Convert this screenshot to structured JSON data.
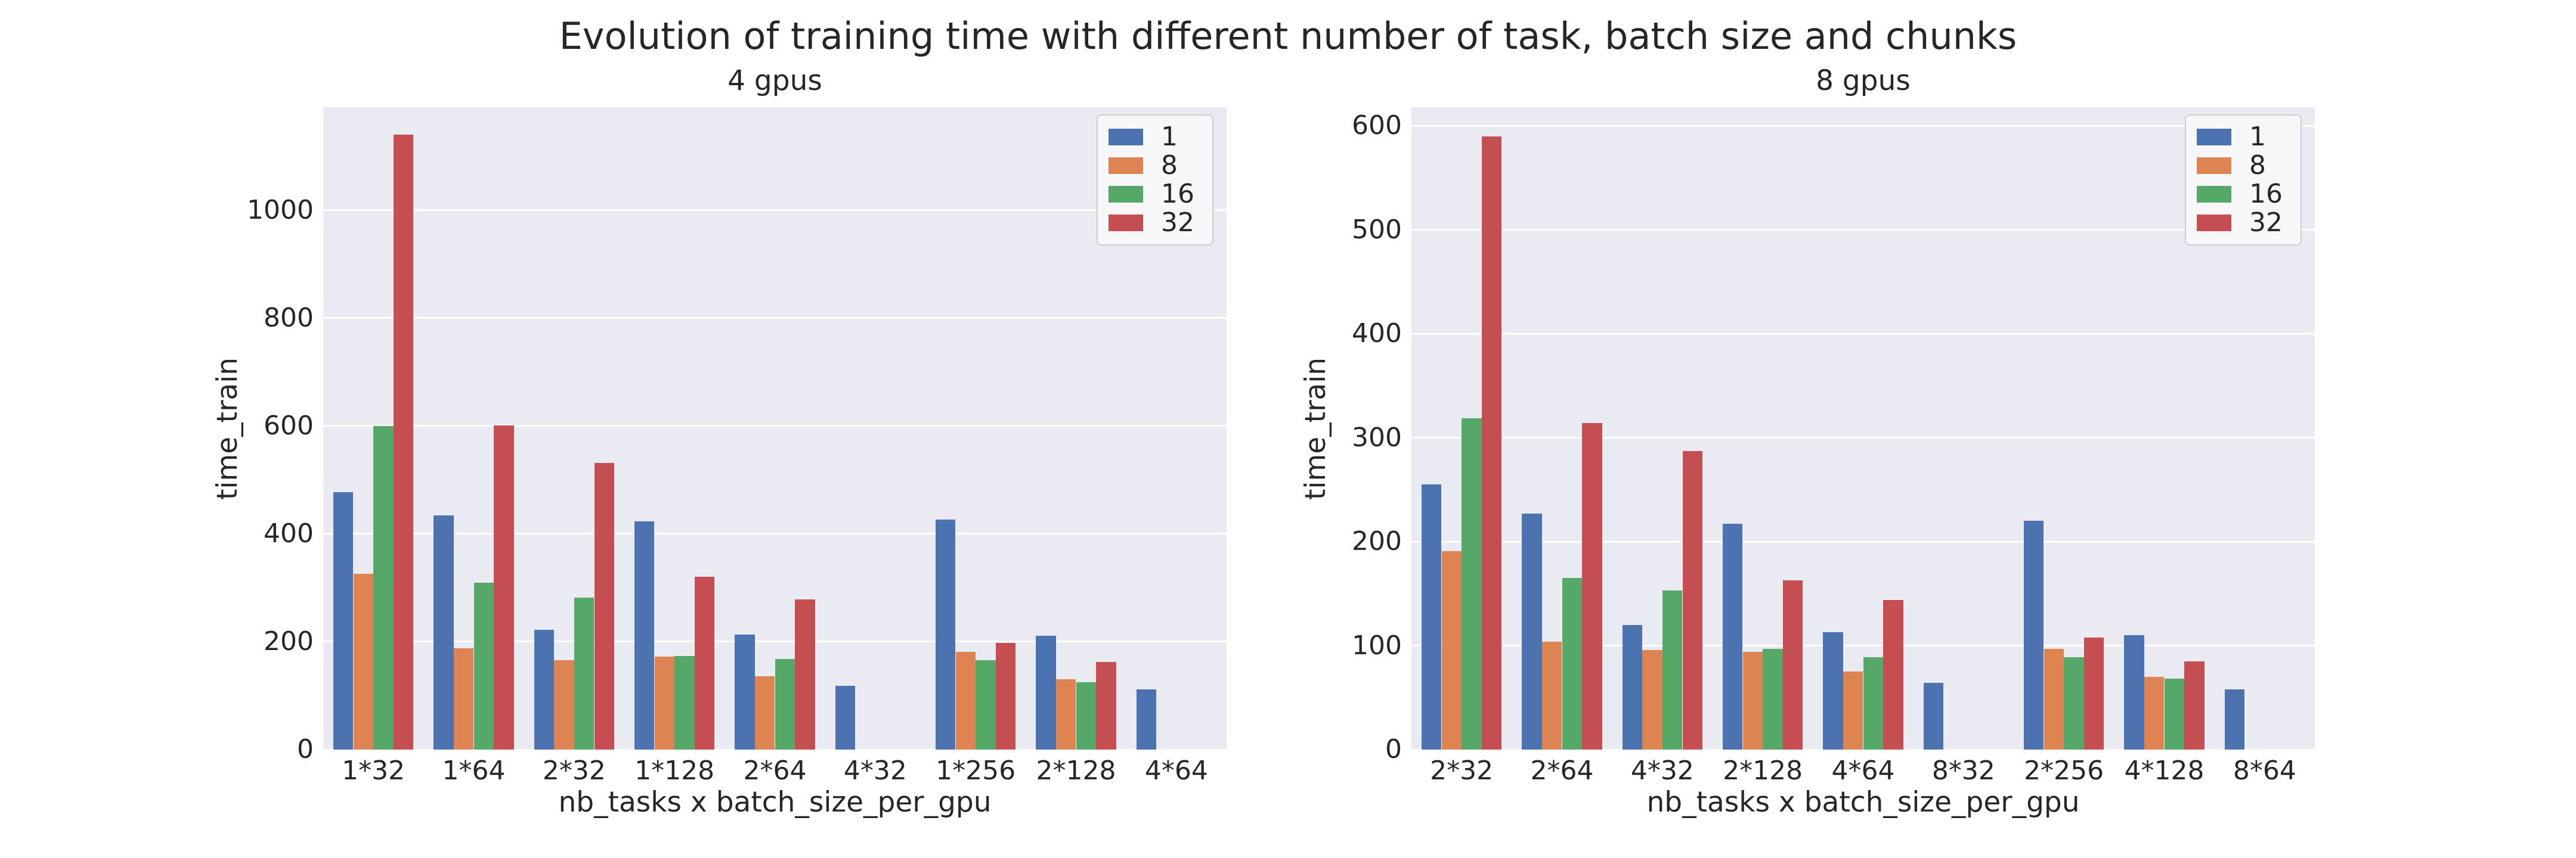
{
  "figure": {
    "title": "Evolution of training time with different number of task, batch size and chunks"
  },
  "colors": {
    "figure_bg": "#FFFFFF",
    "axes_bg": "#EAEAF2",
    "grid": "#FFFFFF",
    "text": "#262626",
    "legend_bg": "#F7F7FA",
    "legend_border": "#CCCCCC",
    "series_blue": "#4C72B0",
    "series_orange": "#DD8452",
    "series_green": "#55A868",
    "series_red": "#C44E52"
  },
  "chart_data": [
    {
      "type": "bar",
      "title": "4 gpus",
      "xlabel": "nb_tasks x batch_size_per_gpu",
      "ylabel": "time_train",
      "grid": true,
      "legend_position": "upper right",
      "ylim": [
        0,
        1191
      ],
      "yticks": [
        0,
        200,
        400,
        600,
        800,
        1000
      ],
      "categories": [
        "1*32",
        "1*64",
        "2*32",
        "1*128",
        "2*64",
        "4*32",
        "1*256",
        "2*128",
        "4*64"
      ],
      "series": [
        {
          "name": "1",
          "color": "#4C72B0",
          "values": [
            477,
            434,
            222,
            423,
            213,
            118,
            426,
            211,
            112
          ]
        },
        {
          "name": "8",
          "color": "#DD8452",
          "values": [
            326,
            188,
            166,
            172,
            136,
            null,
            181,
            130,
            null
          ]
        },
        {
          "name": "16",
          "color": "#55A868",
          "values": [
            600,
            309,
            282,
            174,
            168,
            null,
            166,
            125,
            null
          ]
        },
        {
          "name": "32",
          "color": "#C44E52",
          "values": [
            1140,
            601,
            531,
            320,
            278,
            null,
            198,
            162,
            null
          ]
        }
      ]
    },
    {
      "type": "bar",
      "title": "8 gpus",
      "xlabel": "nb_tasks x batch_size_per_gpu",
      "ylabel": "time_train",
      "grid": true,
      "legend_position": "upper right",
      "ylim": [
        0,
        618
      ],
      "yticks": [
        0,
        100,
        200,
        300,
        400,
        500,
        600
      ],
      "categories": [
        "2*32",
        "2*64",
        "4*32",
        "2*128",
        "4*64",
        "8*32",
        "2*256",
        "4*128",
        "8*64"
      ],
      "series": [
        {
          "name": "1",
          "color": "#4C72B0",
          "values": [
            255,
            227,
            120,
            217,
            113,
            64,
            220,
            110,
            58
          ]
        },
        {
          "name": "8",
          "color": "#DD8452",
          "values": [
            191,
            104,
            96,
            94,
            75,
            null,
            97,
            70,
            null
          ]
        },
        {
          "name": "16",
          "color": "#55A868",
          "values": [
            319,
            165,
            153,
            97,
            89,
            null,
            89,
            68,
            null
          ]
        },
        {
          "name": "32",
          "color": "#C44E52",
          "values": [
            590,
            314,
            287,
            163,
            144,
            null,
            108,
            85,
            null
          ]
        }
      ]
    }
  ]
}
